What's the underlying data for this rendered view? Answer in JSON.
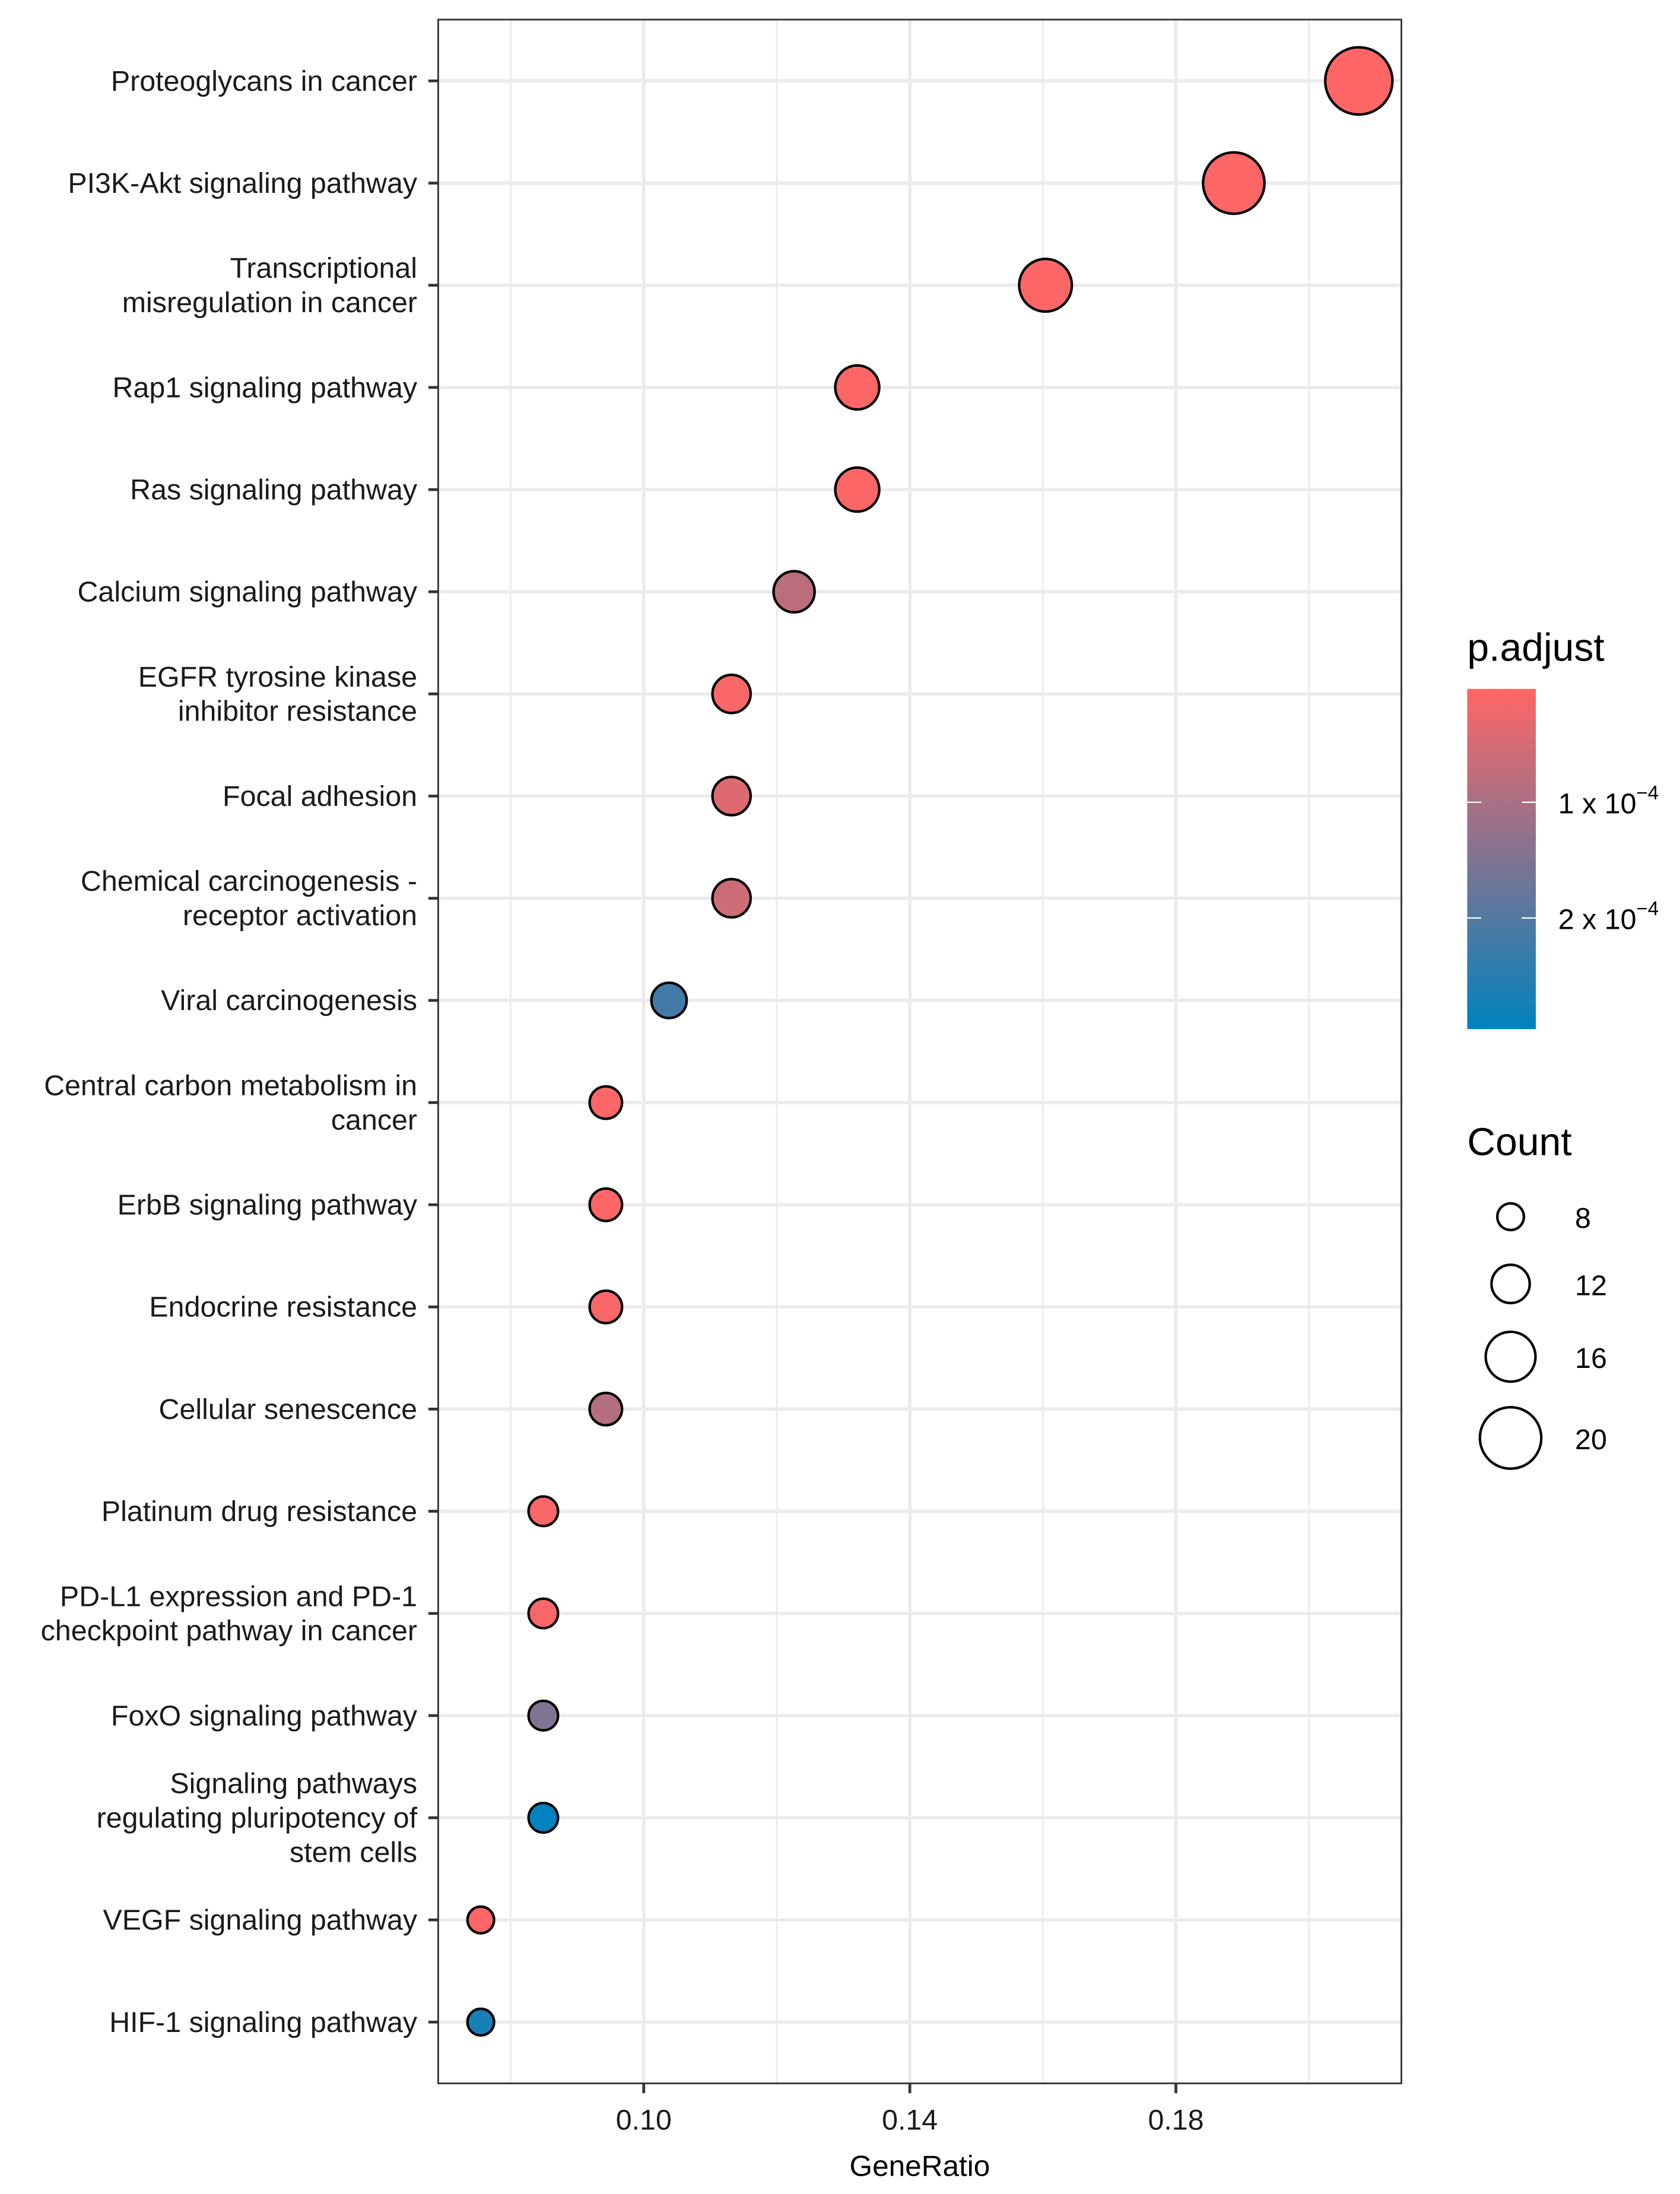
{
  "chart_data": {
    "type": "scatter",
    "title": "",
    "xlabel": "GeneRatio",
    "ylabel": "",
    "xlim": [
      0.0691,
      0.2139
    ],
    "x_ticks": [
      0.1,
      0.14,
      0.18
    ],
    "x_tick_labels": [
      "0.10",
      "0.14",
      "0.18"
    ],
    "grid": true,
    "categories": [
      [
        "Proteoglycans in cancer"
      ],
      [
        "PI3K-Akt signaling pathway"
      ],
      [
        "Transcriptional",
        "misregulation in cancer"
      ],
      [
        "Rap1 signaling pathway"
      ],
      [
        "Ras signaling pathway"
      ],
      [
        "Calcium signaling pathway"
      ],
      [
        "EGFR tyrosine kinase",
        "inhibitor resistance"
      ],
      [
        "Focal adhesion"
      ],
      [
        "Chemical carcinogenesis -",
        "receptor activation"
      ],
      [
        "Viral carcinogenesis"
      ],
      [
        "Central carbon metabolism in",
        "cancer"
      ],
      [
        "ErbB signaling pathway"
      ],
      [
        "Endocrine resistance"
      ],
      [
        "Cellular senescence"
      ],
      [
        "Platinum drug resistance"
      ],
      [
        "PD-L1 expression and PD-1",
        "checkpoint pathway in cancer"
      ],
      [
        "FoxO signaling pathway"
      ],
      [
        "Signaling pathways",
        "regulating pluripotency of",
        "stem cells"
      ],
      [
        "VEGF signaling pathway"
      ],
      [
        "HIF-1 signaling pathway"
      ]
    ],
    "gene_ratio": [
      0.2075,
      0.1887,
      0.1604,
      0.1321,
      0.1321,
      0.1226,
      0.1132,
      0.1132,
      0.1132,
      0.1038,
      0.0943,
      0.0943,
      0.0943,
      0.0943,
      0.0849,
      0.0849,
      0.0849,
      0.0849,
      0.0755,
      0.0755
    ],
    "count": [
      22,
      20,
      17,
      14,
      14,
      13,
      12,
      12,
      12,
      11,
      10,
      10,
      10,
      10,
      9,
      9,
      9,
      9,
      8,
      8
    ],
    "p_adjust": [
      3e-06,
      4e-06,
      6e-06,
      5e-06,
      6e-06,
      8e-05,
      8e-06,
      4e-05,
      6e-05,
      0.00022,
      6e-06,
      6e-06,
      8e-06,
      9e-05,
      8e-06,
      8e-06,
      0.00015,
      0.000296,
      6e-06,
      0.00027
    ],
    "color_legend": {
      "title": "p.adjust",
      "limits": [
        2e-06,
        0.000296
      ],
      "breaks": [
        0.0001,
        0.0002
      ],
      "break_labels": [
        [
          "1 x 10",
          "−4"
        ],
        [
          "2 x 10",
          "−4"
        ]
      ],
      "low_color": "#ff6666",
      "high_color": "#0082be",
      "placement": "right"
    },
    "size_legend": {
      "title": "Count",
      "breaks": [
        8,
        12,
        16,
        20
      ],
      "break_labels": [
        "8",
        "12",
        "16",
        "20"
      ],
      "placement": "right"
    }
  }
}
